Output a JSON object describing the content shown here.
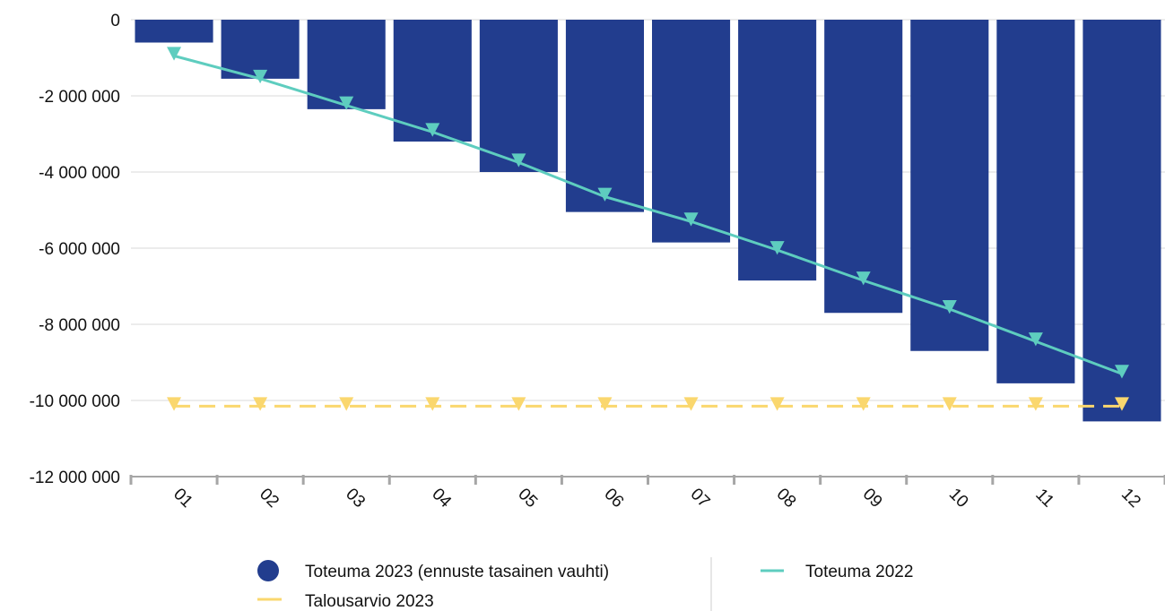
{
  "chart_data": {
    "type": "bar",
    "categories": [
      "01",
      "02",
      "03",
      "04",
      "05",
      "06",
      "07",
      "08",
      "09",
      "10",
      "11",
      "12"
    ],
    "series": [
      {
        "name": "Toteuma 2023 (ennuste tasainen vauhti)",
        "kind": "bar",
        "color": "#223D8E",
        "values": [
          -600000,
          -1550000,
          -2350000,
          -3200000,
          -4000000,
          -5050000,
          -5850000,
          -6850000,
          -7700000,
          -8700000,
          -9550000,
          -10550000
        ]
      },
      {
        "name": "Toteuma 2022",
        "kind": "line",
        "color": "#5ECDBF",
        "marker": "triangle-down",
        "values": [
          -950000,
          -1550000,
          -2250000,
          -2950000,
          -3750000,
          -4650000,
          -5300000,
          -6050000,
          -6850000,
          -7600000,
          -8450000,
          -9300000
        ]
      },
      {
        "name": "Talousarvio 2023",
        "kind": "line",
        "line_style": "dashed",
        "color": "#FAD76E",
        "marker": "triangle-down",
        "values": [
          -10150000,
          -10150000,
          -10150000,
          -10150000,
          -10150000,
          -10150000,
          -10150000,
          -10150000,
          -10150000,
          -10150000,
          -10150000,
          -10150000
        ]
      }
    ],
    "y_ticks": [
      0,
      -2000000,
      -4000000,
      -6000000,
      -8000000,
      -10000000,
      -12000000
    ],
    "y_tick_labels": [
      "0",
      "-2 000 000",
      "-4 000 000",
      "-6 000 000",
      "-8 000 000",
      "-10 000 000",
      "-12 000 000"
    ],
    "ylim": [
      -12000000,
      0
    ],
    "grid": true,
    "legend_position": "bottom",
    "title": "",
    "xlabel": "",
    "ylabel": ""
  }
}
